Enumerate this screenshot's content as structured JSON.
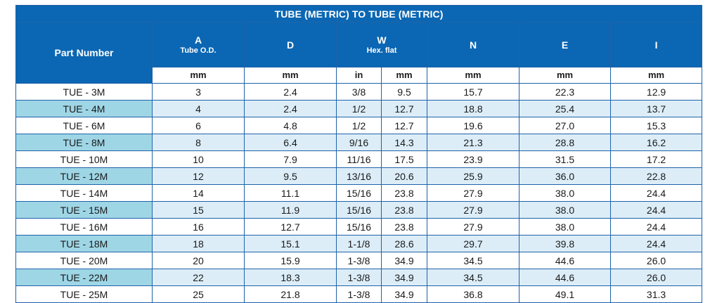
{
  "title": "TUBE (METRIC) TO TUBE (METRIC)",
  "headers": {
    "part_number": "Part Number",
    "a": {
      "main": "A",
      "sub": "Tube O.D."
    },
    "d": "D",
    "w": {
      "main": "W",
      "sub": "Hex. flat"
    },
    "n": "N",
    "e": "E",
    "i": "I"
  },
  "units": [
    "mm",
    "mm",
    "in",
    "mm",
    "mm",
    "mm",
    "mm"
  ],
  "colors": {
    "header_bg": "#0b67b3",
    "row_alt_bg": "#dcedf8",
    "part_alt_bg": "#9fd6e6",
    "border": "#1f63a8"
  },
  "rows": [
    [
      "TUE - 3M",
      "3",
      "2.4",
      "3/8",
      "9.5",
      "15.7",
      "22.3",
      "12.9"
    ],
    [
      "TUE - 4M",
      "4",
      "2.4",
      "1/2",
      "12.7",
      "18.8",
      "25.4",
      "13.7"
    ],
    [
      "TUE - 6M",
      "6",
      "4.8",
      "1/2",
      "12.7",
      "19.6",
      "27.0",
      "15.3"
    ],
    [
      "TUE - 8M",
      "8",
      "6.4",
      "9/16",
      "14.3",
      "21.3",
      "28.8",
      "16.2"
    ],
    [
      "TUE - 10M",
      "10",
      "7.9",
      "11/16",
      "17.5",
      "23.9",
      "31.5",
      "17.2"
    ],
    [
      "TUE - 12M",
      "12",
      "9.5",
      "13/16",
      "20.6",
      "25.9",
      "36.0",
      "22.8"
    ],
    [
      "TUE - 14M",
      "14",
      "11.1",
      "15/16",
      "23.8",
      "27.9",
      "38.0",
      "24.4"
    ],
    [
      "TUE - 15M",
      "15",
      "11.9",
      "15/16",
      "23.8",
      "27.9",
      "38.0",
      "24.4"
    ],
    [
      "TUE - 16M",
      "16",
      "12.7",
      "15/16",
      "23.8",
      "27.9",
      "38.0",
      "24.4"
    ],
    [
      "TUE - 18M",
      "18",
      "15.1",
      "1-1/8",
      "28.6",
      "29.7",
      "39.8",
      "24.4"
    ],
    [
      "TUE - 20M",
      "20",
      "15.9",
      "1-3/8",
      "34.9",
      "34.5",
      "44.6",
      "26.0"
    ],
    [
      "TUE - 22M",
      "22",
      "18.3",
      "1-3/8",
      "34.9",
      "34.5",
      "44.6",
      "26.0"
    ],
    [
      "TUE - 25M",
      "25",
      "21.8",
      "1-3/8",
      "34.9",
      "36.8",
      "49.1",
      "31.3"
    ]
  ]
}
